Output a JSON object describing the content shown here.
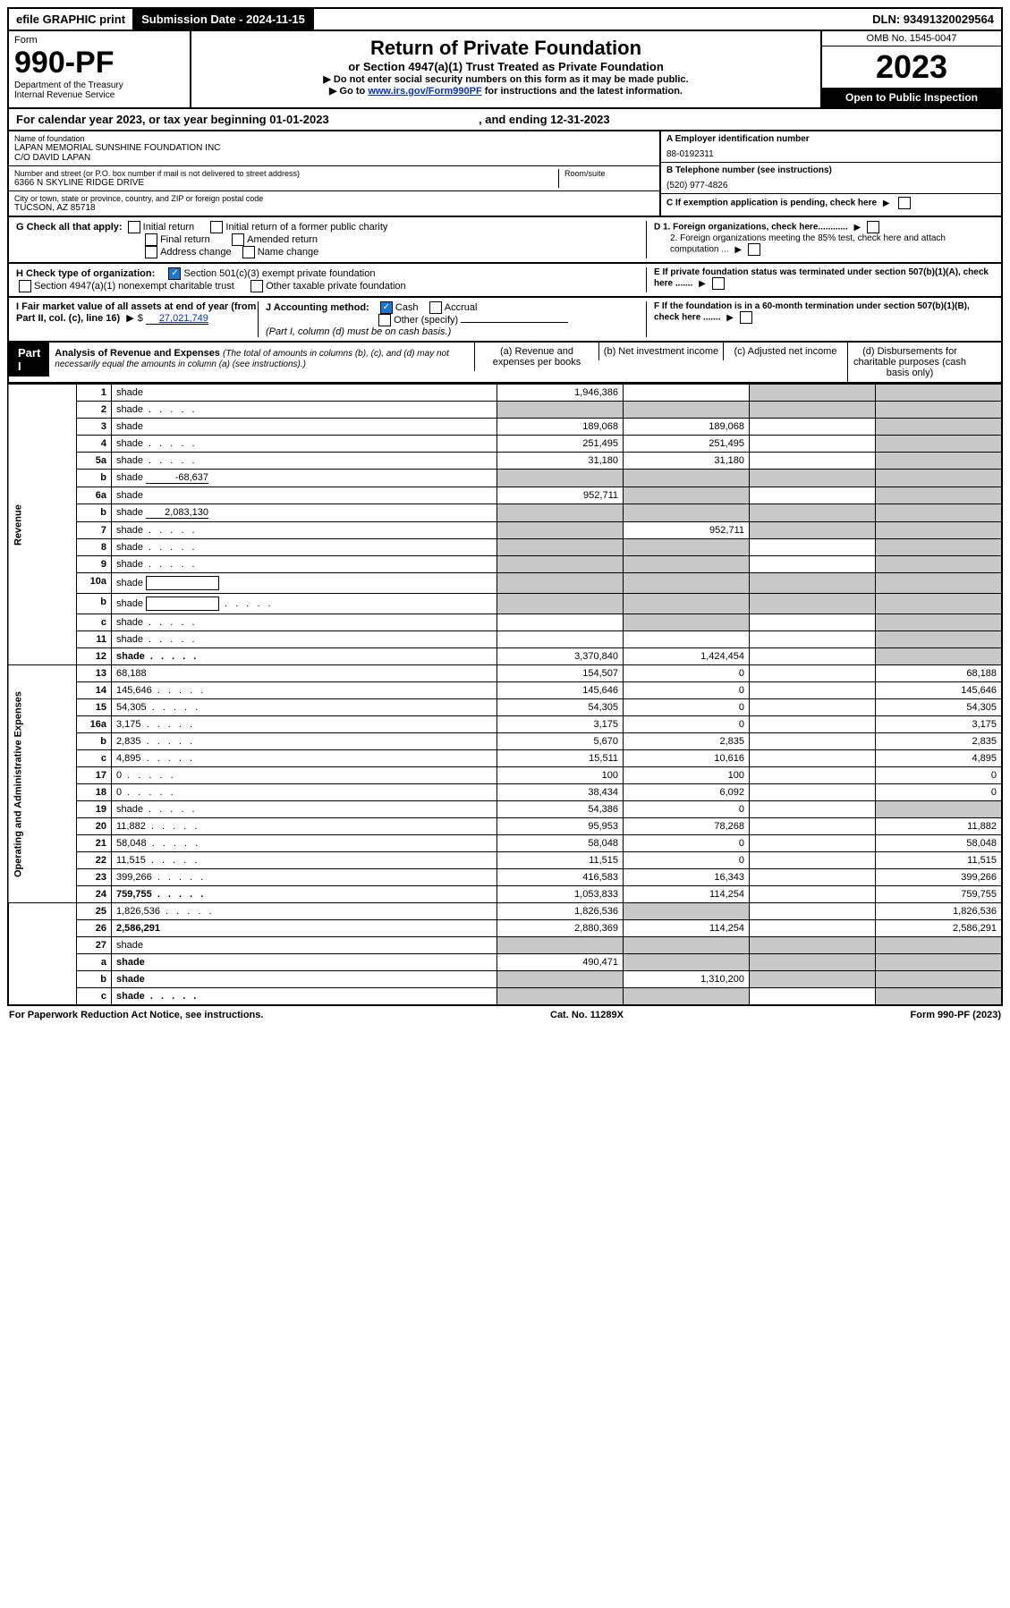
{
  "top": {
    "efile": "efile GRAPHIC print",
    "submission": "Submission Date - 2024-11-15",
    "dln": "DLN: 93491320029564"
  },
  "header": {
    "form_label": "Form",
    "form_num": "990-PF",
    "dept": "Department of the Treasury",
    "irs": "Internal Revenue Service",
    "title": "Return of Private Foundation",
    "subtitle": "or Section 4947(a)(1) Trust Treated as Private Foundation",
    "instr1": "▶ Do not enter social security numbers on this form as it may be made public.",
    "instr2_pre": "▶ Go to ",
    "instr2_link": "www.irs.gov/Form990PF",
    "instr2_post": " for instructions and the latest information.",
    "omb": "OMB No. 1545-0047",
    "year": "2023",
    "open": "Open to Public Inspection"
  },
  "cal_year": {
    "pre": "For calendar year 2023, or tax year beginning 01-01-2023",
    "end": ", and ending 12-31-2023"
  },
  "info": {
    "name_label": "Name of foundation",
    "name": "LAPAN MEMORIAL SUNSHINE FOUNDATION INC",
    "co": "C/O DAVID LAPAN",
    "addr_label": "Number and street (or P.O. box number if mail is not delivered to street address)",
    "addr": "6366 N SKYLINE RIDGE DRIVE",
    "room_label": "Room/suite",
    "city_label": "City or town, state or province, country, and ZIP or foreign postal code",
    "city": "TUCSON, AZ  85718",
    "a_label": "A Employer identification number",
    "a_val": "88-0192311",
    "b_label": "B Telephone number (see instructions)",
    "b_val": "(520) 977-4826",
    "c_label": "C If exemption application is pending, check here",
    "d1": "D 1. Foreign organizations, check here............",
    "d2": "2. Foreign organizations meeting the 85% test, check here and attach computation ...",
    "e": "E  If private foundation status was terminated under section 507(b)(1)(A), check here .......",
    "f": "F  If the foundation is in a 60-month termination under section 507(b)(1)(B), check here .......",
    "g_label": "G Check all that apply:",
    "g_opts": [
      "Initial return",
      "Initial return of a former public charity",
      "Final return",
      "Amended return",
      "Address change",
      "Name change"
    ],
    "h_label": "H Check type of organization:",
    "h1": "Section 501(c)(3) exempt private foundation",
    "h2": "Section 4947(a)(1) nonexempt charitable trust",
    "h3": "Other taxable private foundation",
    "i_label": "I Fair market value of all assets at end of year (from Part II, col. (c), line 16)",
    "i_val": "27,021,749",
    "j_label": "J Accounting method:",
    "j_cash": "Cash",
    "j_accrual": "Accrual",
    "j_other": "Other (specify)",
    "j_note": "(Part I, column (d) must be on cash basis.)"
  },
  "part1": {
    "label": "Part I",
    "title": "Analysis of Revenue and Expenses",
    "title_note": "(The total of amounts in columns (b), (c), and (d) may not necessarily equal the amounts in column (a) (see instructions).)",
    "cols": {
      "a": "(a)   Revenue and expenses per books",
      "b": "(b)   Net investment income",
      "c": "(c)   Adjusted net income",
      "d": "(d)   Disbursements for charitable purposes (cash basis only)"
    }
  },
  "sides": {
    "rev": "Revenue",
    "exp": "Operating and Administrative Expenses"
  },
  "rows": [
    {
      "n": "1",
      "d": "shade",
      "a": "1,946,386",
      "b": "",
      "c": "shade"
    },
    {
      "n": "2",
      "d": "shade",
      "dotted": true,
      "a": "shade",
      "b": "shade",
      "c": "shade"
    },
    {
      "n": "3",
      "d": "shade",
      "a": "189,068",
      "b": "189,068",
      "c": ""
    },
    {
      "n": "4",
      "d": "shade",
      "dotted": true,
      "a": "251,495",
      "b": "251,495",
      "c": ""
    },
    {
      "n": "5a",
      "d": "shade",
      "dotted": true,
      "a": "31,180",
      "b": "31,180",
      "c": ""
    },
    {
      "n": "b",
      "d": "shade",
      "inline": "-68,637",
      "a": "shade",
      "b": "shade",
      "c": "shade"
    },
    {
      "n": "6a",
      "d": "shade",
      "a": "952,711",
      "b": "shade",
      "c": ""
    },
    {
      "n": "b",
      "d": "shade",
      "inline": "2,083,130",
      "a": "shade",
      "b": "shade",
      "c": "shade"
    },
    {
      "n": "7",
      "d": "shade",
      "dotted": true,
      "a": "shade",
      "b": "952,711",
      "c": "shade"
    },
    {
      "n": "8",
      "d": "shade",
      "dotted": true,
      "a": "shade",
      "b": "shade",
      "c": ""
    },
    {
      "n": "9",
      "d": "shade",
      "dotted": true,
      "a": "shade",
      "b": "shade",
      "c": ""
    },
    {
      "n": "10a",
      "d": "shade",
      "box": true,
      "a": "shade",
      "b": "shade",
      "c": "shade"
    },
    {
      "n": "b",
      "d": "shade",
      "dotted": true,
      "box": true,
      "a": "shade",
      "b": "shade",
      "c": "shade"
    },
    {
      "n": "c",
      "d": "shade",
      "dotted": true,
      "a": "",
      "b": "shade",
      "c": ""
    },
    {
      "n": "11",
      "d": "shade",
      "dotted": true,
      "a": "",
      "b": "",
      "c": ""
    },
    {
      "n": "12",
      "d": "shade",
      "dotted": true,
      "bold": true,
      "a": "3,370,840",
      "b": "1,424,454",
      "c": ""
    },
    {
      "n": "13",
      "d": "68,188",
      "a": "154,507",
      "b": "0",
      "c": ""
    },
    {
      "n": "14",
      "d": "145,646",
      "dotted": true,
      "a": "145,646",
      "b": "0",
      "c": ""
    },
    {
      "n": "15",
      "d": "54,305",
      "dotted": true,
      "a": "54,305",
      "b": "0",
      "c": ""
    },
    {
      "n": "16a",
      "d": "3,175",
      "dotted": true,
      "a": "3,175",
      "b": "0",
      "c": ""
    },
    {
      "n": "b",
      "d": "2,835",
      "dotted": true,
      "a": "5,670",
      "b": "2,835",
      "c": ""
    },
    {
      "n": "c",
      "d": "4,895",
      "dotted": true,
      "a": "15,511",
      "b": "10,616",
      "c": ""
    },
    {
      "n": "17",
      "d": "0",
      "dotted": true,
      "a": "100",
      "b": "100",
      "c": ""
    },
    {
      "n": "18",
      "d": "0",
      "dotted": true,
      "a": "38,434",
      "b": "6,092",
      "c": ""
    },
    {
      "n": "19",
      "d": "shade",
      "dotted": true,
      "a": "54,386",
      "b": "0",
      "c": ""
    },
    {
      "n": "20",
      "d": "11,882",
      "dotted": true,
      "a": "95,953",
      "b": "78,268",
      "c": ""
    },
    {
      "n": "21",
      "d": "58,048",
      "dotted": true,
      "a": "58,048",
      "b": "0",
      "c": ""
    },
    {
      "n": "22",
      "d": "11,515",
      "dotted": true,
      "a": "11,515",
      "b": "0",
      "c": ""
    },
    {
      "n": "23",
      "d": "399,266",
      "dotted": true,
      "a": "416,583",
      "b": "16,343",
      "c": ""
    },
    {
      "n": "24",
      "d": "759,755",
      "dotted": true,
      "bold": true,
      "a": "1,053,833",
      "b": "114,254",
      "c": ""
    },
    {
      "n": "25",
      "d": "1,826,536",
      "dotted": true,
      "a": "1,826,536",
      "b": "shade",
      "c": ""
    },
    {
      "n": "26",
      "d": "2,586,291",
      "bold": true,
      "a": "2,880,369",
      "b": "114,254",
      "c": ""
    },
    {
      "n": "27",
      "d": "shade",
      "a": "shade",
      "b": "shade",
      "c": "shade"
    },
    {
      "n": "a",
      "d": "shade",
      "bold": true,
      "a": "490,471",
      "b": "shade",
      "c": "shade"
    },
    {
      "n": "b",
      "d": "shade",
      "bold": true,
      "a": "shade",
      "b": "1,310,200",
      "c": "shade"
    },
    {
      "n": "c",
      "d": "shade",
      "dotted": true,
      "bold": true,
      "a": "shade",
      "b": "shade",
      "c": ""
    }
  ],
  "footer": {
    "left": "For Paperwork Reduction Act Notice, see instructions.",
    "mid": "Cat. No. 11289X",
    "right": "Form 990-PF (2023)"
  }
}
